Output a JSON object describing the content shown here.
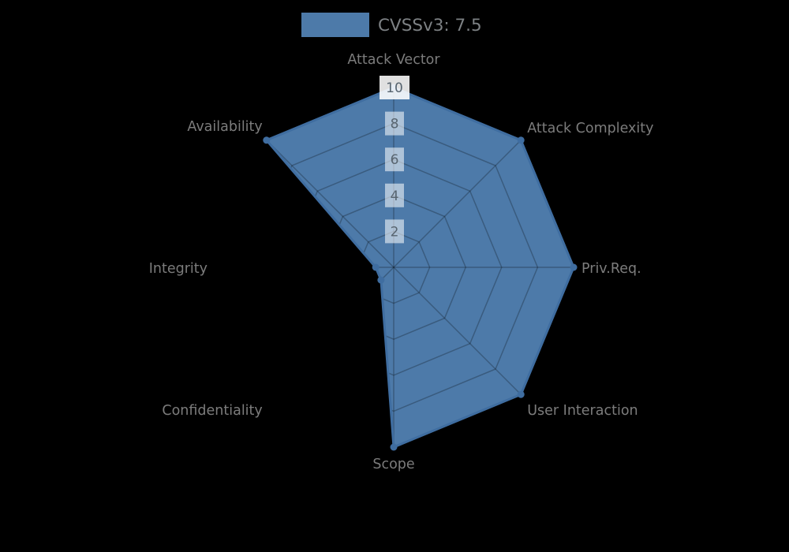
{
  "legend": {
    "label": "CVSSv3: 7.5"
  },
  "chart_data": {
    "type": "radar",
    "title": "CVSSv3: 7.5",
    "categories": [
      "Attack Vector",
      "Attack Complexity",
      "Priv.Req.",
      "User Interaction",
      "Scope",
      "Confidentiality",
      "Integrity",
      "Availability"
    ],
    "series": [
      {
        "name": "CVSSv3: 7.5",
        "values": [
          10,
          10,
          10,
          10,
          10,
          1,
          1,
          10
        ]
      }
    ],
    "rlim": [
      0,
      10
    ],
    "ticks": [
      2,
      4,
      6,
      8,
      10
    ],
    "grid": true,
    "grid_shape": "octagon-web",
    "legend_position": "top-center",
    "axes_order": "clockwise-from-top",
    "colors": {
      "background": "#000000",
      "fill": "#4d7aa9",
      "stroke": "#3f6da0",
      "marker": "#3f6da0",
      "grid_line": "rgba(0,0,0,0.25)",
      "axis_label": "#7c7c7c",
      "tick_label": "#57646f",
      "tick_box": "rgba(255,255,255,0.55)",
      "tick_box_top": "rgba(255,255,255,0.88)",
      "legend_text": "#7d8184"
    }
  }
}
